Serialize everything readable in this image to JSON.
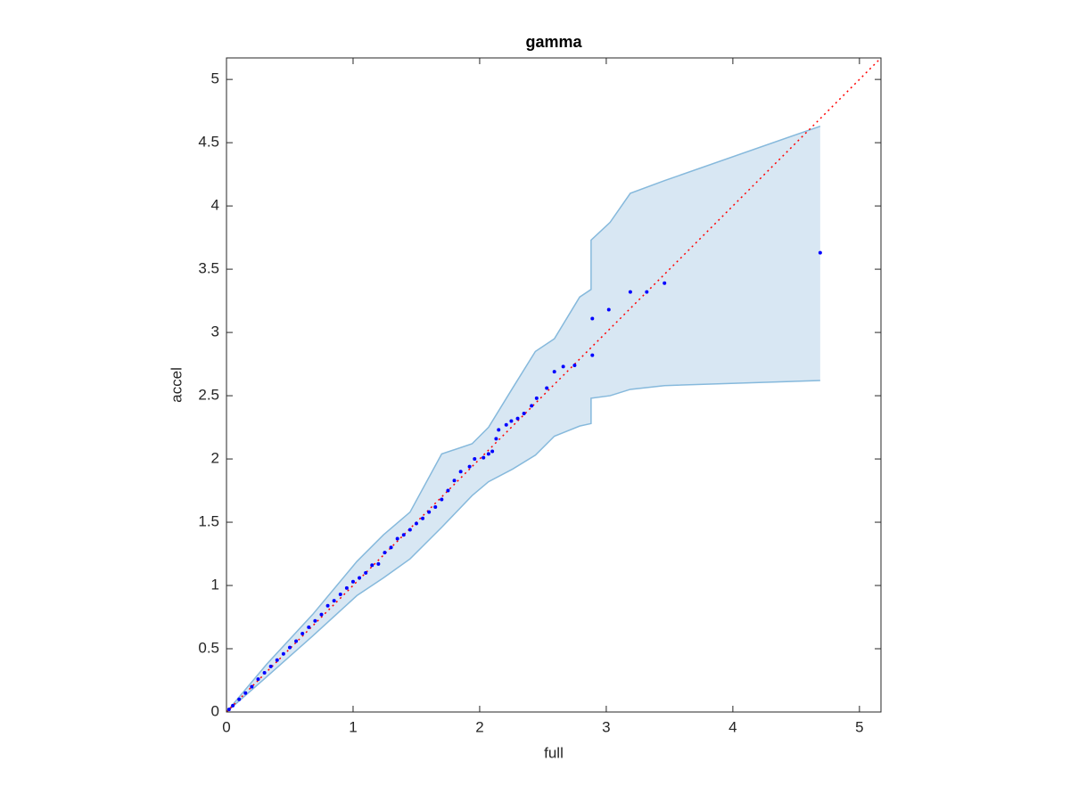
{
  "chart_data": {
    "type": "scatter",
    "title": "gamma",
    "x_label": "full",
    "y_label": "accel",
    "xlim": [
      0,
      5.17
    ],
    "ylim": [
      0,
      5.17
    ],
    "xticks": [
      0,
      1,
      2,
      3,
      4,
      5
    ],
    "yticks": [
      0,
      0.5,
      1,
      1.5,
      2,
      2.5,
      3,
      3.5,
      4,
      4.5,
      5
    ],
    "grid": false,
    "box": true,
    "x": [
      0.02,
      0.05,
      0.1,
      0.15,
      0.2,
      0.25,
      0.3,
      0.35,
      0.4,
      0.45,
      0.5,
      0.55,
      0.6,
      0.65,
      0.7,
      0.75,
      0.8,
      0.85,
      0.9,
      0.95,
      1.0,
      1.05,
      1.1,
      1.15,
      1.2,
      1.25,
      1.3,
      1.35,
      1.4,
      1.45,
      1.5,
      1.55,
      1.6,
      1.65,
      1.7,
      1.75,
      1.8,
      1.85,
      1.92,
      1.96,
      2.03,
      2.07,
      2.1,
      2.13,
      2.15,
      2.21,
      2.25,
      2.3,
      2.35,
      2.41,
      2.45,
      2.53,
      2.59,
      2.66,
      2.75,
      2.89,
      2.89,
      3.02,
      3.19,
      3.32,
      3.46,
      4.69
    ],
    "series": [
      {
        "color": "#0000ff",
        "values": [
          0.02,
          0.05,
          0.1,
          0.15,
          0.2,
          0.26,
          0.31,
          0.36,
          0.41,
          0.46,
          0.51,
          0.56,
          0.62,
          0.67,
          0.72,
          0.77,
          0.84,
          0.88,
          0.93,
          0.98,
          1.03,
          1.06,
          1.1,
          1.16,
          1.17,
          1.26,
          1.3,
          1.37,
          1.4,
          1.44,
          1.49,
          1.53,
          1.58,
          1.62,
          1.68,
          1.75,
          1.83,
          1.9,
          1.94,
          2.0,
          2.01,
          2.04,
          2.06,
          2.16,
          2.23,
          2.27,
          2.3,
          2.32,
          2.36,
          2.42,
          2.48,
          2.56,
          2.69,
          2.73,
          2.74,
          2.82,
          3.11,
          3.18,
          3.32,
          3.32,
          3.39,
          3.63
        ]
      }
    ],
    "band": {
      "color": "#d8e7f3",
      "edge_color": "#86b9dc",
      "x": [
        0,
        0.32,
        0.68,
        1.03,
        1.24,
        1.45,
        1.7,
        1.94,
        2.07,
        2.26,
        2.44,
        2.59,
        2.79,
        2.88,
        2.88,
        3.03,
        3.19,
        3.46,
        4.69
      ],
      "upper": [
        0,
        0.38,
        0.77,
        1.19,
        1.4,
        1.58,
        2.04,
        2.12,
        2.25,
        2.56,
        2.85,
        2.95,
        3.28,
        3.34,
        3.73,
        3.87,
        4.1,
        4.2,
        4.63
      ],
      "lower": [
        0,
        0.28,
        0.6,
        0.92,
        1.06,
        1.21,
        1.46,
        1.71,
        1.82,
        1.92,
        2.03,
        2.18,
        2.26,
        2.28,
        2.48,
        2.5,
        2.55,
        2.58,
        2.62
      ]
    },
    "reference_line": {
      "color": "#ff0000",
      "x": [
        0,
        5.17
      ],
      "values": [
        0,
        5.17
      ]
    }
  }
}
